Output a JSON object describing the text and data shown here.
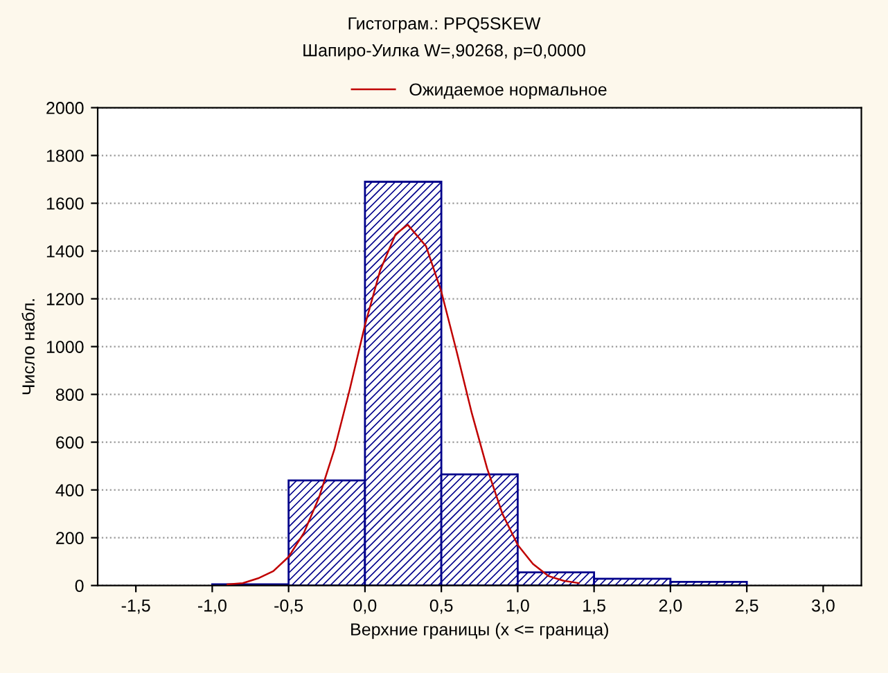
{
  "chart_data": {
    "type": "histogram",
    "title": "Гистограм.: PPQ5SKEW",
    "subtitle": "Шапиро-Уилка W=,90268, p=0,0000",
    "xlabel": "Верхние границы (x <= граница)",
    "ylabel": "Число набл.",
    "bins": [
      -1.0,
      -0.5,
      0.0,
      0.5,
      1.0,
      1.5,
      2.0,
      2.5
    ],
    "values": [
      5,
      440,
      1690,
      465,
      55,
      28,
      15
    ],
    "color": "#00008b",
    "series": [
      {
        "name": "Ожидаемое нормальное",
        "type": "line",
        "color": "#c00000",
        "x": [
          -0.9,
          -0.8,
          -0.7,
          -0.6,
          -0.5,
          -0.4,
          -0.3,
          -0.2,
          -0.1,
          0.0,
          0.1,
          0.2,
          0.28,
          0.4,
          0.5,
          0.6,
          0.7,
          0.8,
          0.9,
          1.0,
          1.1,
          1.2,
          1.3,
          1.4
        ],
        "values": [
          5,
          10,
          30,
          60,
          120,
          220,
          370,
          570,
          820,
          1090,
          1320,
          1470,
          1510,
          1420,
          1230,
          980,
          720,
          490,
          300,
          170,
          90,
          40,
          20,
          10
        ]
      }
    ],
    "xlim": [
      -1.75,
      3.25
    ],
    "xticks": [
      {
        "value": -1.5,
        "label": "-1,5"
      },
      {
        "value": -1.0,
        "label": "-1,0"
      },
      {
        "value": -0.5,
        "label": "-0,5"
      },
      {
        "value": 0.0,
        "label": "0,0"
      },
      {
        "value": 0.5,
        "label": "0,5"
      },
      {
        "value": 1.0,
        "label": "1,0"
      },
      {
        "value": 1.5,
        "label": "1,5"
      },
      {
        "value": 2.0,
        "label": "2,0"
      },
      {
        "value": 2.5,
        "label": "2,5"
      },
      {
        "value": 3.0,
        "label": "3,0"
      }
    ],
    "ylim": [
      0,
      2000
    ],
    "yticks": [
      0,
      200,
      400,
      600,
      800,
      1000,
      1200,
      1400,
      1600,
      1800,
      2000
    ],
    "grid": "y",
    "legend": "top"
  }
}
